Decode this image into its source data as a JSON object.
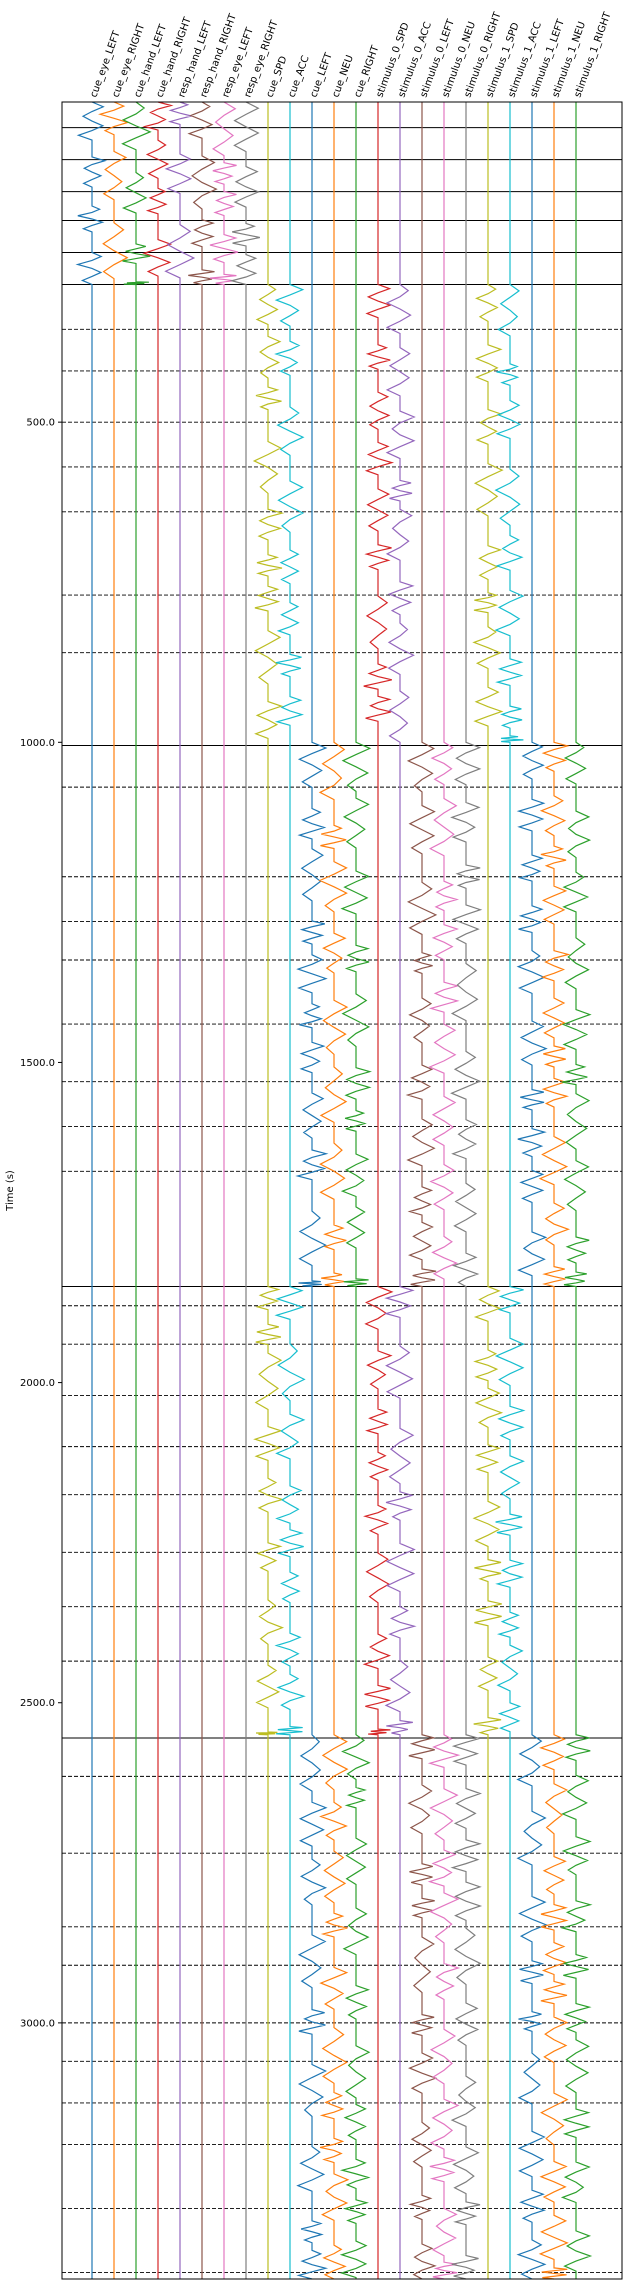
{
  "chart_data": {
    "type": "line",
    "title": "",
    "xlabel": "",
    "ylabel": "Time (s)",
    "ylim": [
      0,
      3400
    ],
    "y_inverted": true,
    "y_ticks": [
      500,
      1000,
      1500,
      2000,
      2500,
      3000
    ],
    "y_tick_labels": [
      "500.0",
      "1000.0",
      "1500.0",
      "2000.0",
      "2500.0",
      "3000.0"
    ],
    "grid": false,
    "legend": "none",
    "series": [
      {
        "name": "cue_eye_LEFT",
        "color": "#1f77b4",
        "active": [
          [
            0,
            285
          ]
        ]
      },
      {
        "name": "cue_eye_RIGHT",
        "color": "#ff7f0e",
        "active": [
          [
            0,
            285
          ]
        ]
      },
      {
        "name": "cue_hand_LEFT",
        "color": "#2ca02c",
        "active": [
          [
            0,
            285
          ]
        ]
      },
      {
        "name": "cue_hand_RIGHT",
        "color": "#d62728",
        "active": [
          [
            0,
            285
          ]
        ]
      },
      {
        "name": "resp_hand_LEFT",
        "color": "#9467bd",
        "active": [
          [
            0,
            285
          ]
        ]
      },
      {
        "name": "resp_hand_RIGHT",
        "color": "#8c564b",
        "active": [
          [
            0,
            285
          ]
        ]
      },
      {
        "name": "resp_eye_LEFT",
        "color": "#e377c2",
        "active": [
          [
            0,
            285
          ]
        ]
      },
      {
        "name": "resp_eye_RIGHT",
        "color": "#7f7f7f",
        "active": [
          [
            0,
            285
          ]
        ]
      },
      {
        "name": "cue_SPD",
        "color": "#bcbd22",
        "active": [
          [
            285,
            1000
          ],
          [
            1850,
            2550
          ]
        ]
      },
      {
        "name": "cue_ACC",
        "color": "#17becf",
        "active": [
          [
            285,
            1000
          ],
          [
            1850,
            2550
          ]
        ]
      },
      {
        "name": "cue_LEFT",
        "color": "#1f77b4",
        "active": [
          [
            1000,
            1850
          ],
          [
            2550,
            3400
          ]
        ]
      },
      {
        "name": "cue_NEU",
        "color": "#ff7f0e",
        "active": [
          [
            1000,
            1850
          ],
          [
            2550,
            3400
          ]
        ]
      },
      {
        "name": "cue_RIGHT",
        "color": "#2ca02c",
        "active": [
          [
            1000,
            1850
          ],
          [
            2550,
            3400
          ]
        ]
      },
      {
        "name": "stimulus_0_SPD",
        "color": "#d62728",
        "active": [
          [
            285,
            1000
          ],
          [
            1850,
            2550
          ]
        ]
      },
      {
        "name": "stimulus_0_ACC",
        "color": "#9467bd",
        "active": [
          [
            285,
            1000
          ],
          [
            1850,
            2550
          ]
        ]
      },
      {
        "name": "stimulus_0_LEFT",
        "color": "#8c564b",
        "active": [
          [
            1000,
            1850
          ],
          [
            2550,
            3400
          ]
        ]
      },
      {
        "name": "stimulus_0_NEU",
        "color": "#e377c2",
        "active": [
          [
            1000,
            1850
          ],
          [
            2550,
            3400
          ]
        ]
      },
      {
        "name": "stimulus_0_RIGHT",
        "color": "#7f7f7f",
        "active": [
          [
            1000,
            1850
          ],
          [
            2550,
            3400
          ]
        ]
      },
      {
        "name": "stimulus_1_SPD",
        "color": "#bcbd22",
        "active": [
          [
            285,
            1000
          ],
          [
            1850,
            2550
          ]
        ]
      },
      {
        "name": "stimulus_1_ACC",
        "color": "#17becf",
        "active": [
          [
            285,
            1000
          ],
          [
            1850,
            2550
          ]
        ]
      },
      {
        "name": "stimulus_1_LEFT",
        "color": "#1f77b4",
        "active": [
          [
            1000,
            1850
          ],
          [
            2550,
            3400
          ]
        ]
      },
      {
        "name": "stimulus_1_NEU",
        "color": "#ff7f0e",
        "active": [
          [
            1000,
            1850
          ],
          [
            2550,
            3400
          ]
        ]
      },
      {
        "name": "stimulus_1_RIGHT",
        "color": "#2ca02c",
        "active": [
          [
            1000,
            1850
          ],
          [
            2550,
            3400
          ]
        ]
      }
    ],
    "boundaries_solid": [
      40,
      90,
      140,
      185,
      235,
      285,
      1005,
      1850,
      2555
    ],
    "boundaries_dashed": [
      355,
      420,
      500,
      570,
      640,
      770,
      860,
      1070,
      1210,
      1280,
      1340,
      1440,
      1530,
      1600,
      1670,
      1880,
      1940,
      2020,
      2100,
      2175,
      2265,
      2350,
      2435,
      2615,
      2735,
      2850,
      2910,
      3000,
      3060,
      3125,
      3190,
      3290,
      3390
    ]
  }
}
